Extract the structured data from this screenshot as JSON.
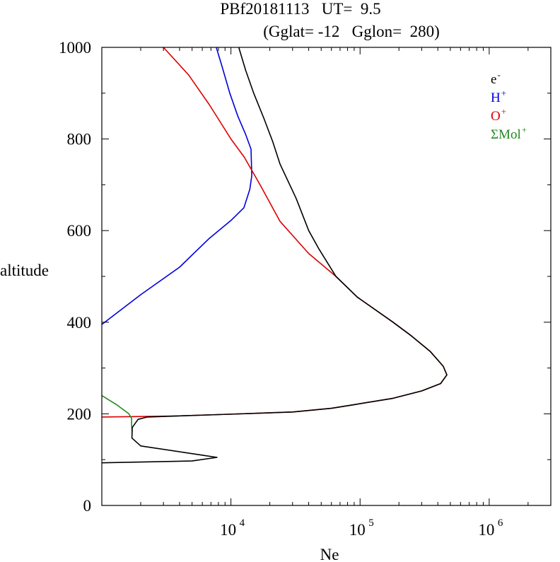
{
  "chart_data": {
    "type": "line",
    "title_line1": "PBf20181113   UT=  9.5",
    "title_line2": "(Gglat= -12   Gglon=  280)",
    "xlabel": "Ne",
    "ylabel": "altitude",
    "x_scale": "log",
    "xlim": [
      1000,
      3000000
    ],
    "ylim": [
      0,
      1000
    ],
    "y_ticks": [
      0,
      200,
      400,
      600,
      800,
      1000
    ],
    "y_tick_labels": [
      "0",
      "200",
      "400",
      "600",
      "800",
      "1000"
    ],
    "x_tick_labels": [
      {
        "base": "10",
        "exp": "4",
        "value": 10000
      },
      {
        "base": "10",
        "exp": "5",
        "value": 100000
      },
      {
        "base": "10",
        "exp": "6",
        "value": 1000000
      }
    ],
    "legend_position": "top-right",
    "series": [
      {
        "name": "e",
        "sup": "-",
        "color": "#000000",
        "points": [
          [
            1000,
            93
          ],
          [
            5000,
            97
          ],
          [
            7800,
            105
          ],
          [
            5900,
            110
          ],
          [
            2000,
            130
          ],
          [
            1710,
            147
          ],
          [
            1720,
            170
          ],
          [
            1910,
            188
          ],
          [
            2250,
            193
          ],
          [
            9600,
            199
          ],
          [
            30000,
            204
          ],
          [
            60000,
            212
          ],
          [
            90000,
            220
          ],
          [
            180000,
            234
          ],
          [
            300000,
            250
          ],
          [
            420000,
            266
          ],
          [
            470000,
            285
          ],
          [
            440000,
            304
          ],
          [
            350000,
            336
          ],
          [
            250000,
            370
          ],
          [
            180000,
            400
          ],
          [
            95000,
            455
          ],
          [
            65000,
            500
          ],
          [
            48000,
            560
          ],
          [
            40000,
            600
          ],
          [
            32000,
            670
          ],
          [
            24000,
            745
          ],
          [
            21000,
            795
          ],
          [
            18000,
            845
          ],
          [
            15000,
            900
          ],
          [
            13000,
            950
          ],
          [
            11500,
            1000
          ]
        ]
      },
      {
        "name": "H",
        "sup": "+",
        "color": "#0000dd",
        "points": [
          [
            1000,
            395
          ],
          [
            2000,
            460
          ],
          [
            4000,
            520
          ],
          [
            6800,
            583
          ],
          [
            10000,
            622
          ],
          [
            12600,
            650
          ],
          [
            14000,
            690
          ],
          [
            14500,
            720
          ],
          [
            14300,
            778
          ],
          [
            13000,
            810
          ],
          [
            11300,
            850
          ],
          [
            9800,
            900
          ],
          [
            8500,
            960
          ],
          [
            7700,
            1000
          ]
        ]
      },
      {
        "name": "O",
        "sup": "+",
        "color": "#dd0000",
        "points": [
          [
            1000,
            193
          ],
          [
            3500,
            195
          ],
          [
            9600,
            199
          ],
          [
            30000,
            204
          ],
          [
            60000,
            212
          ],
          [
            90000,
            220
          ],
          [
            180000,
            234
          ],
          [
            300000,
            250
          ],
          [
            420000,
            266
          ],
          [
            470000,
            285
          ],
          [
            440000,
            304
          ],
          [
            350000,
            336
          ],
          [
            250000,
            370
          ],
          [
            180000,
            400
          ],
          [
            95000,
            455
          ],
          [
            65000,
            500
          ],
          [
            40000,
            550
          ],
          [
            24000,
            620
          ],
          [
            16800,
            700
          ],
          [
            12700,
            760
          ],
          [
            10000,
            800
          ],
          [
            6800,
            875
          ],
          [
            4700,
            940
          ],
          [
            3000,
            1000
          ]
        ]
      },
      {
        "name": "ΣMol",
        "sup": "+",
        "color": "#228822",
        "points": [
          [
            1000,
            240
          ],
          [
            1300,
            220
          ],
          [
            1620,
            200
          ],
          [
            1700,
            190
          ],
          [
            1700,
            175
          ],
          [
            1720,
            160
          ]
        ]
      }
    ]
  }
}
